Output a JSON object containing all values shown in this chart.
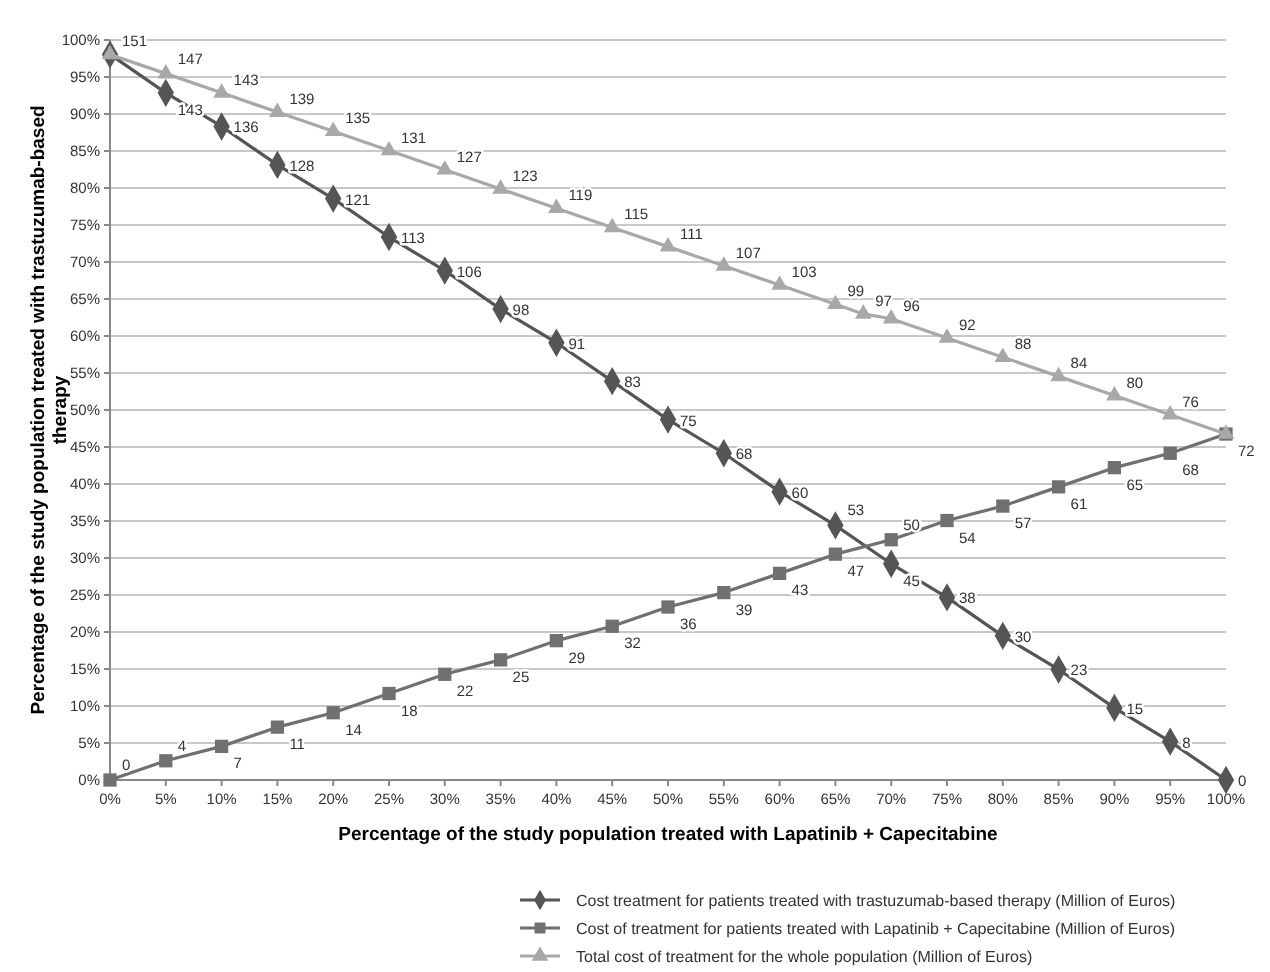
{
  "chart_data": {
    "type": "line",
    "xlabel": "Percentage of the study population treated with Lapatinib + Capecitabine",
    "ylabel": "Percentage of the study population treated with trastuzumab-based therapy",
    "x": [
      0,
      5,
      10,
      15,
      20,
      25,
      30,
      35,
      40,
      45,
      50,
      55,
      60,
      65,
      70,
      75,
      80,
      85,
      90,
      95,
      100
    ],
    "xlim": [
      0,
      100
    ],
    "xticks": [
      {
        "value": 0,
        "label": "0%"
      },
      {
        "value": 5,
        "label": "5%"
      },
      {
        "value": 10,
        "label": "10%"
      },
      {
        "value": 15,
        "label": "15%"
      },
      {
        "value": 20,
        "label": "20%"
      },
      {
        "value": 25,
        "label": "25%"
      },
      {
        "value": 30,
        "label": "30%"
      },
      {
        "value": 35,
        "label": "35%"
      },
      {
        "value": 40,
        "label": "40%"
      },
      {
        "value": 45,
        "label": "45%"
      },
      {
        "value": 50,
        "label": "50%"
      },
      {
        "value": 55,
        "label": "55%"
      },
      {
        "value": 60,
        "label": "60%"
      },
      {
        "value": 65,
        "label": "65%"
      },
      {
        "value": 70,
        "label": "70%"
      },
      {
        "value": 75,
        "label": "75%"
      },
      {
        "value": 80,
        "label": "80%"
      },
      {
        "value": 85,
        "label": "85%"
      },
      {
        "value": 90,
        "label": "90%"
      },
      {
        "value": 95,
        "label": "95%"
      },
      {
        "value": 100,
        "label": "100%"
      }
    ],
    "ylim": [
      0,
      100
    ],
    "yticks": [
      {
        "value": 0,
        "label": "0%"
      },
      {
        "value": 5,
        "label": "5%"
      },
      {
        "value": 10,
        "label": "10%"
      },
      {
        "value": 15,
        "label": "15%"
      },
      {
        "value": 20,
        "label": "20%"
      },
      {
        "value": 25,
        "label": "25%"
      },
      {
        "value": 30,
        "label": "30%"
      },
      {
        "value": 35,
        "label": "35%"
      },
      {
        "value": 40,
        "label": "40%"
      },
      {
        "value": 45,
        "label": "45%"
      },
      {
        "value": 50,
        "label": "50%"
      },
      {
        "value": 55,
        "label": "55%"
      },
      {
        "value": 60,
        "label": "60%"
      },
      {
        "value": 65,
        "label": "65%"
      },
      {
        "value": 70,
        "label": "70%"
      },
      {
        "value": 75,
        "label": "75%"
      },
      {
        "value": 80,
        "label": "80%"
      },
      {
        "value": 85,
        "label": "85%"
      },
      {
        "value": 90,
        "label": "90%"
      },
      {
        "value": 95,
        "label": "95%"
      },
      {
        "value": 100,
        "label": "100%"
      }
    ],
    "y2lim": [
      0,
      154
    ],
    "grid": "y",
    "legend": "bottom",
    "data_labels": true,
    "series": [
      {
        "name": "Cost treatment for patients treated with trastuzumab-based therapy (Million of Euros)",
        "color": "#555555",
        "marker": "diamond",
        "axis": "y2",
        "values": [
          151,
          143,
          136,
          128,
          121,
          113,
          106,
          98,
          91,
          83,
          75,
          68,
          60,
          53,
          45,
          38,
          30,
          23,
          15,
          8,
          0
        ],
        "value_labels": [
          null,
          "143",
          "136",
          "128",
          "121",
          "113",
          "106",
          "98",
          "91",
          "83",
          "75",
          "68",
          "60",
          "53",
          "45",
          "38",
          "30",
          "23",
          "15",
          "8",
          "0"
        ]
      },
      {
        "name": "Cost of treatment for patients treated with Lapatinib + Capecitabine (Million of Euros)",
        "color": "#707070",
        "marker": "square",
        "axis": "y2",
        "values": [
          0,
          4,
          7,
          11,
          14,
          18,
          22,
          25,
          29,
          32,
          36,
          39,
          43,
          47,
          50,
          54,
          57,
          61,
          65,
          68,
          72
        ]
      },
      {
        "name": "Total cost of treatment for the whole population (Million of Euros)",
        "color": "#a8a8a8",
        "marker": "triangle",
        "axis": "y2",
        "x": [
          0,
          5,
          10,
          15,
          20,
          25,
          30,
          35,
          40,
          45,
          50,
          55,
          60,
          65,
          67.5,
          70,
          75,
          80,
          85,
          90,
          95,
          100
        ],
        "values": [
          151,
          147,
          143,
          139,
          135,
          131,
          127,
          123,
          119,
          115,
          111,
          107,
          103,
          99,
          97,
          96,
          92,
          88,
          84,
          80,
          76,
          72
        ],
        "value_labels": [
          "151",
          "147",
          "143",
          "139",
          "135",
          "131",
          "127",
          "123",
          "119",
          "115",
          "111",
          "107",
          "103",
          "99",
          "97",
          "96",
          "92",
          "88",
          "84",
          "80",
          "76",
          null
        ]
      }
    ]
  }
}
